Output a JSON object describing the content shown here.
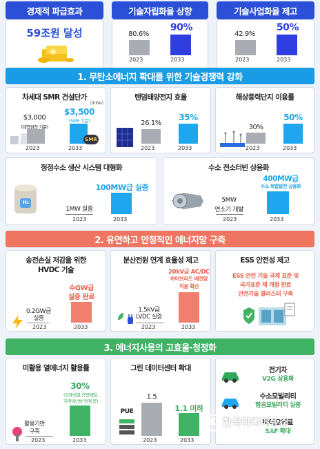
{
  "top": {
    "h1": "경제적 파급효과",
    "h2": "기술자립화율 상향",
    "h3": "기술사업화율 제고",
    "effect": "59조원 달성",
    "self": {
      "v2023": "80.6%",
      "v2033": "90%",
      "y1": "2023",
      "y2": "2033",
      "values": [
        80.6,
        90
      ]
    },
    "comm": {
      "v2023": "42.9%",
      "v2033": "50%",
      "y1": "2023",
      "y2": "2033",
      "values": [
        42.9,
        50
      ]
    }
  },
  "sec1": {
    "title": "1. 무탄소에너지 확대를 위한 기술경쟁력 강화",
    "smr": {
      "title": "차세대 SMR 건설단가",
      "unit": "(/kWe)",
      "v1": "$3,000",
      "v1sub": "(대형원전 기준)",
      "v2": "$3,500",
      "v2sub": "(SMR 기준)",
      "y1": "2023",
      "y2": "2033",
      "badge": "SMR"
    },
    "tandem": {
      "title": "탠덤태양전지 효율",
      "v1": "26.1%",
      "v2": "35%",
      "y1": "2023",
      "y2": "2033"
    },
    "wind": {
      "title": "해상풍력단지 이용률",
      "v1": "30%",
      "v2": "50%",
      "y1": "2023",
      "y2": "2033"
    },
    "h2": {
      "title": "청정수소 생산 시스템 대형화",
      "v1": "1MW 실증",
      "v2": "100MW급 실증",
      "y1": "2023",
      "y2": "2033",
      "icon_label": "H₂"
    },
    "turbine": {
      "title": "수소 전소터빈 상용화",
      "v1a": "5MW",
      "v1b": "연소기 개발",
      "v2a": "400MW급",
      "v2b": "수소 복합발전 상용화",
      "y1": "2023",
      "y2": "2033"
    }
  },
  "sec2": {
    "title": "2. 유연하고 안정적인 에너지망 구축",
    "hvdc": {
      "title1": "송전손실 저감을 위한",
      "title2": "HVDC 기술",
      "v1a": "0.2GW급",
      "v1b": "실증",
      "v2a": "수GW급",
      "v2b": "실증 완료",
      "y1": "2023",
      "y2": "2033"
    },
    "dist": {
      "title": "분산전원 연계 효율성 제고",
      "v1a": "1.5kV급",
      "v1b": "LVDC 실증",
      "v2a": "20kV급 AC/DC",
      "v2b": "하이브리드 배전망",
      "v2c": "적용 확산",
      "y1": "2023",
      "y2": "2033"
    },
    "ess": {
      "title": "ESS 안전성 제고",
      "l1": "ESS 안전 기술 국제 표준 및",
      "l2": "국가표준 제 개정 완료",
      "l3": "안전기술 클러스터 구축"
    }
  },
  "sec3": {
    "title": "3. 에너지사용의 고효율·청정화",
    "heat": {
      "title": "미활용 열에너지 활용률",
      "v1a": "활용기반",
      "v1b": "구축",
      "v2": "30%",
      "v2sub1": "(신재생열,공정폐열,",
      "v2sub2": "지역냉난방 연계 등)",
      "y1": "2023",
      "y2": "2033"
    },
    "dc": {
      "title": "그린 데이터센터 확대",
      "label": "PUE",
      "v1": "1.5",
      "v2": "1.1 이하",
      "y1": "2023",
      "y2": "2033"
    },
    "mob": {
      "t1": "전기차",
      "s1": "V2G 상용화",
      "t2": "수소모빌리티",
      "s2": "항공모빌리티 실증",
      "t3": "바이오연료",
      "s3": "SAF 확대"
    }
  },
  "watermark": "한국미디어뉴스",
  "watermark_sub": "KOREA MEDIA NEWS",
  "colors": {
    "navy": "#2b4fd6",
    "section1": "#1a9be6",
    "section2": "#ef7563",
    "section3": "#3fb265",
    "blue": "#2e3ee0",
    "cyan": "#1ea7ee",
    "gray": "#a9adb3"
  }
}
